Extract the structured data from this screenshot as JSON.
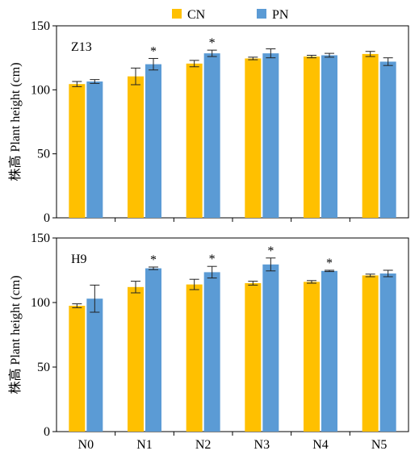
{
  "legend": {
    "placement": "top-center",
    "items": [
      {
        "label": "CN",
        "color": "#FFC000"
      },
      {
        "label": "PN",
        "color": "#5B9BD5"
      }
    ]
  },
  "chart_data": [
    {
      "type": "bar",
      "panel_label": "Z13",
      "ylabel": "株高 Plant height (cm)",
      "xlabel": "",
      "ylim": [
        0,
        150
      ],
      "yticks": [
        0,
        50,
        100,
        150
      ],
      "categories": [
        "N0",
        "N1",
        "N2",
        "N3",
        "N4",
        "N5"
      ],
      "series": [
        {
          "name": "CN",
          "color": "#FFC000",
          "values": [
            104.5,
            110.5,
            120.5,
            124.5,
            126.0,
            128.0
          ],
          "errors": [
            2.0,
            6.5,
            2.5,
            1.0,
            1.0,
            2.0
          ]
        },
        {
          "name": "PN",
          "color": "#5B9BD5",
          "values": [
            106.5,
            120.0,
            128.5,
            128.5,
            127.0,
            122.0
          ],
          "errors": [
            1.5,
            4.5,
            2.5,
            3.5,
            1.5,
            3.0
          ]
        }
      ],
      "significance": [
        {
          "category": "N1",
          "series": "PN",
          "mark": "*"
        },
        {
          "category": "N2",
          "series": "PN",
          "mark": "*"
        }
      ],
      "grid": false
    },
    {
      "type": "bar",
      "panel_label": "H9",
      "ylabel": "株高 Plant height (cm)",
      "xlabel": "",
      "ylim": [
        0,
        150
      ],
      "yticks": [
        0,
        50,
        100,
        150
      ],
      "categories": [
        "N0",
        "N1",
        "N2",
        "N3",
        "N4",
        "N5"
      ],
      "series": [
        {
          "name": "CN",
          "color": "#FFC000",
          "values": [
            97.5,
            112.0,
            114.0,
            115.0,
            116.0,
            121.0
          ],
          "errors": [
            1.5,
            4.5,
            4.0,
            1.5,
            1.0,
            1.0
          ]
        },
        {
          "name": "PN",
          "color": "#5B9BD5",
          "values": [
            103.0,
            126.5,
            123.5,
            129.5,
            124.5,
            122.5
          ],
          "errors": [
            10.5,
            1.0,
            4.5,
            5.0,
            0.5,
            2.5
          ]
        }
      ],
      "significance": [
        {
          "category": "N1",
          "series": "PN",
          "mark": "*"
        },
        {
          "category": "N2",
          "series": "PN",
          "mark": "*"
        },
        {
          "category": "N3",
          "series": "PN",
          "mark": "*"
        },
        {
          "category": "N4",
          "series": "PN",
          "mark": "*"
        }
      ],
      "grid": false
    }
  ]
}
